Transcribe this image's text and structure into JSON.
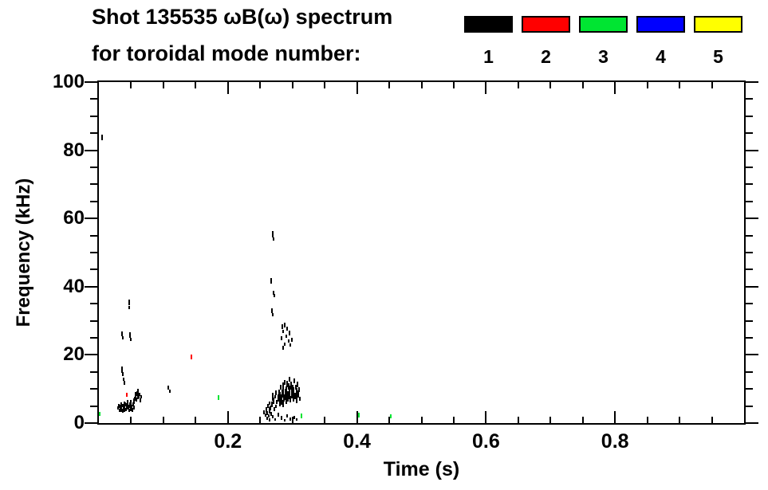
{
  "title": {
    "line1": "Shot 135535 ωB(ω) spectrum",
    "line2": "for toroidal mode number:"
  },
  "legend": {
    "modes": [
      {
        "label": "1",
        "color": "#000000"
      },
      {
        "label": "2",
        "color": "#ff0000"
      },
      {
        "label": "3",
        "color": "#00e532"
      },
      {
        "label": "4",
        "color": "#0000ff"
      },
      {
        "label": "5",
        "color": "#ffff00"
      }
    ]
  },
  "axis": {
    "x_tick_labels": [
      "0.2",
      "0.4",
      "0.6",
      "0.8"
    ],
    "y_tick_labels": [
      "0",
      "20",
      "40",
      "60",
      "80",
      "100"
    ]
  },
  "chart_data": {
    "type": "scatter",
    "title": "Shot 135535 ωB(ω) spectrum for toroidal mode number: 1 2 3 4 5",
    "xlabel": "Time (s)",
    "ylabel": "Frequency (kHz)",
    "xlim": [
      0,
      1.0
    ],
    "ylim": [
      0,
      100
    ],
    "x_major_ticks": [
      0.2,
      0.4,
      0.6,
      0.8
    ],
    "x_minor_step": 0.05,
    "y_major_ticks": [
      0,
      20,
      40,
      60,
      80,
      100
    ],
    "y_minor_step": 5,
    "grid": false,
    "legend_position": "top-right",
    "point_format": "[time_s, freq_kHz, dash_height_kHz]",
    "series": [
      {
        "name": "n=1",
        "color": "#000000",
        "points": [
          [
            0.005,
            83.8,
            1.5
          ],
          [
            0.03,
            4.4,
            1.0
          ],
          [
            0.031,
            5.0,
            1.2
          ],
          [
            0.032,
            3.8,
            0.9
          ],
          [
            0.033,
            4.6,
            1.4
          ],
          [
            0.034,
            5.6,
            1.0
          ],
          [
            0.035,
            4.1,
            1.8
          ],
          [
            0.036,
            5.2,
            1.0
          ],
          [
            0.037,
            3.6,
            1.2
          ],
          [
            0.038,
            4.9,
            1.6
          ],
          [
            0.039,
            5.9,
            1.0
          ],
          [
            0.04,
            4.3,
            2.0
          ],
          [
            0.041,
            5.4,
            1.2
          ],
          [
            0.042,
            3.9,
            1.0
          ],
          [
            0.043,
            5.0,
            1.5
          ],
          [
            0.044,
            4.4,
            1.0
          ],
          [
            0.045,
            5.8,
            1.9
          ],
          [
            0.046,
            4.7,
            1.2
          ],
          [
            0.047,
            3.7,
            1.0
          ],
          [
            0.048,
            5.3,
            1.6
          ],
          [
            0.049,
            4.1,
            1.1
          ],
          [
            0.05,
            6.1,
            1.4
          ],
          [
            0.051,
            4.8,
            1.0
          ],
          [
            0.052,
            3.9,
            1.3
          ],
          [
            0.053,
            5.5,
            1.0
          ],
          [
            0.054,
            4.5,
            1.2
          ],
          [
            0.055,
            6.4,
            1.6
          ],
          [
            0.056,
            7.2,
            1.2
          ],
          [
            0.057,
            8.1,
            1.8
          ],
          [
            0.058,
            6.9,
            1.2
          ],
          [
            0.059,
            8.7,
            1.4
          ],
          [
            0.06,
            7.5,
            1.0
          ],
          [
            0.061,
            9.2,
            1.6
          ],
          [
            0.062,
            7.9,
            1.2
          ],
          [
            0.063,
            8.4,
            1.0
          ],
          [
            0.064,
            6.7,
            1.3
          ],
          [
            0.065,
            7.7,
            1.0
          ],
          [
            0.036,
            15.6,
            1.8
          ],
          [
            0.037,
            14.3,
            1.2
          ],
          [
            0.038,
            12.9,
            1.0
          ],
          [
            0.04,
            11.8,
            1.0
          ],
          [
            0.047,
            35.4,
            1.6
          ],
          [
            0.047,
            33.9,
            1.0
          ],
          [
            0.036,
            26.2,
            1.4
          ],
          [
            0.037,
            25.0,
            1.0
          ],
          [
            0.048,
            25.8,
            1.6
          ],
          [
            0.049,
            24.6,
            1.0
          ],
          [
            0.108,
            10.4,
            1.3
          ],
          [
            0.11,
            9.3,
            1.0
          ],
          [
            0.27,
            55.3,
            1.8
          ],
          [
            0.271,
            54.0,
            1.0
          ],
          [
            0.267,
            41.7,
            1.6
          ],
          [
            0.271,
            38.2,
            1.2
          ],
          [
            0.272,
            37.3,
            1.0
          ],
          [
            0.268,
            32.9,
            1.5
          ],
          [
            0.27,
            31.8,
            1.0
          ],
          [
            0.284,
            28.3,
            1.3
          ],
          [
            0.286,
            26.9,
            1.0
          ],
          [
            0.288,
            28.8,
            1.5
          ],
          [
            0.29,
            25.5,
            1.0
          ],
          [
            0.292,
            27.6,
            1.2
          ],
          [
            0.294,
            24.1,
            1.0
          ],
          [
            0.296,
            26.4,
            1.4
          ],
          [
            0.288,
            23.2,
            1.0
          ],
          [
            0.283,
            24.9,
            1.1
          ],
          [
            0.297,
            22.9,
            1.0
          ],
          [
            0.299,
            24.5,
            1.2
          ],
          [
            0.285,
            22.1,
            1.0
          ],
          [
            0.256,
            3.1,
            1.2
          ],
          [
            0.258,
            2.3,
            1.0
          ],
          [
            0.26,
            3.9,
            1.5
          ],
          [
            0.261,
            2.9,
            1.0
          ],
          [
            0.262,
            5.1,
            1.2
          ],
          [
            0.263,
            2.1,
            1.0
          ],
          [
            0.264,
            3.7,
            1.8
          ],
          [
            0.265,
            5.9,
            1.0
          ],
          [
            0.266,
            4.4,
            1.3
          ],
          [
            0.267,
            2.7,
            1.0
          ],
          [
            0.268,
            5.5,
            1.6
          ],
          [
            0.269,
            7.1,
            1.2
          ],
          [
            0.27,
            8.3,
            1.0
          ],
          [
            0.271,
            6.5,
            1.8
          ],
          [
            0.272,
            4.1,
            1.2
          ],
          [
            0.273,
            7.7,
            1.0
          ],
          [
            0.274,
            8.9,
            1.4
          ],
          [
            0.275,
            4.9,
            1.0
          ],
          [
            0.276,
            6.2,
            1.2
          ],
          [
            0.278,
            7.4,
            2.2
          ],
          [
            0.279,
            9.1,
            1.6
          ],
          [
            0.28,
            6.2,
            2.8
          ],
          [
            0.281,
            8.0,
            2.0
          ],
          [
            0.282,
            10.4,
            1.4
          ],
          [
            0.283,
            6.9,
            3.0
          ],
          [
            0.284,
            8.7,
            2.4
          ],
          [
            0.285,
            11.1,
            1.6
          ],
          [
            0.285,
            5.7,
            2.0
          ],
          [
            0.286,
            9.5,
            2.8
          ],
          [
            0.287,
            7.3,
            2.2
          ],
          [
            0.288,
            11.9,
            1.4
          ],
          [
            0.289,
            8.4,
            3.2
          ],
          [
            0.29,
            6.6,
            2.0
          ],
          [
            0.29,
            10.0,
            1.6
          ],
          [
            0.291,
            8.9,
            2.6
          ],
          [
            0.292,
            11.5,
            1.8
          ],
          [
            0.293,
            7.8,
            3.0
          ],
          [
            0.294,
            10.7,
            2.0
          ],
          [
            0.295,
            8.2,
            2.6
          ],
          [
            0.295,
            12.9,
            1.4
          ],
          [
            0.296,
            9.8,
            2.2
          ],
          [
            0.297,
            7.0,
            1.8
          ],
          [
            0.298,
            10.9,
            2.4
          ],
          [
            0.299,
            8.8,
            3.0
          ],
          [
            0.3,
            10.2,
            1.8
          ],
          [
            0.301,
            7.5,
            2.2
          ],
          [
            0.302,
            9.3,
            2.6
          ],
          [
            0.303,
            12.3,
            1.4
          ],
          [
            0.304,
            7.9,
            2.0
          ],
          [
            0.305,
            10.5,
            1.6
          ],
          [
            0.306,
            6.8,
            1.8
          ],
          [
            0.307,
            9.0,
            2.4
          ],
          [
            0.308,
            11.3,
            1.6
          ],
          [
            0.309,
            8.5,
            2.0
          ],
          [
            0.31,
            9.9,
            1.4
          ],
          [
            0.311,
            7.2,
            1.2
          ],
          [
            0.261,
            1.4,
            1.0
          ],
          [
            0.265,
            0.9,
            0.8
          ],
          [
            0.269,
            1.9,
            1.0
          ],
          [
            0.273,
            1.1,
            0.8
          ],
          [
            0.278,
            2.5,
            1.2
          ],
          [
            0.283,
            1.5,
            1.0
          ],
          [
            0.288,
            0.8,
            0.8
          ],
          [
            0.292,
            2.1,
            1.0
          ],
          [
            0.297,
            1.2,
            0.8
          ],
          [
            0.303,
            1.7,
            1.0
          ],
          [
            0.307,
            1.0,
            0.8
          ]
        ]
      },
      {
        "name": "n=2",
        "color": "#ff0000",
        "points": [
          [
            0.043,
            8.3,
            1.2
          ],
          [
            0.143,
            19.5,
            1.4
          ]
        ]
      },
      {
        "name": "n=3",
        "color": "#00e532",
        "points": [
          [
            0.001,
            2.6,
            1.2
          ],
          [
            0.185,
            7.5,
            1.3
          ],
          [
            0.314,
            2.1,
            1.2
          ],
          [
            0.403,
            2.3,
            1.4
          ],
          [
            0.452,
            2.0,
            1.2
          ]
        ]
      },
      {
        "name": "n=4",
        "color": "#0000ff",
        "points": []
      },
      {
        "name": "n=5",
        "color": "#ffff00",
        "points": []
      }
    ]
  }
}
